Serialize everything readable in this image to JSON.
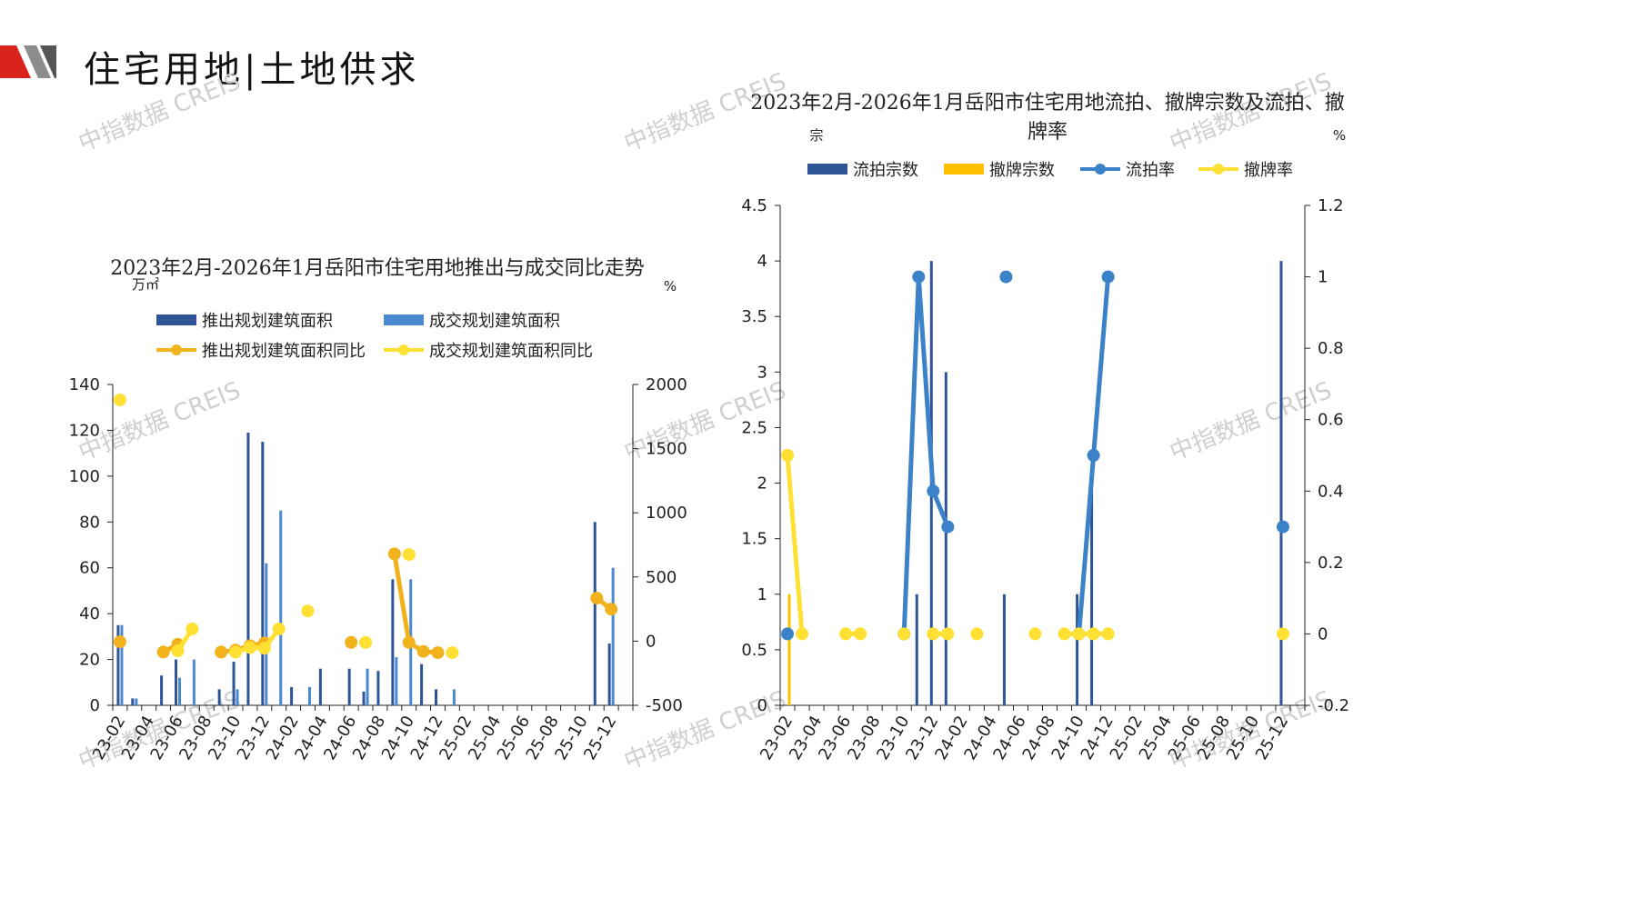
{
  "page": {
    "title": "住宅用地|土地供求",
    "watermark": "中指数据 CREIS"
  },
  "categories": [
    "23-02",
    "23-03",
    "23-04",
    "23-05",
    "23-06",
    "23-07",
    "23-08",
    "23-09",
    "23-10",
    "23-11",
    "23-12",
    "24-01",
    "24-02",
    "24-03",
    "24-04",
    "24-05",
    "24-06",
    "24-07",
    "24-08",
    "24-09",
    "24-10",
    "24-11",
    "24-12",
    "25-01",
    "25-02",
    "25-03",
    "25-04",
    "25-05",
    "25-06",
    "25-07",
    "25-08",
    "25-09",
    "25-10",
    "25-11",
    "25-12",
    "26-01"
  ],
  "tick_labels": [
    "23-02",
    "23-04",
    "23-06",
    "23-08",
    "23-10",
    "23-12",
    "24-02",
    "24-04",
    "24-06",
    "24-08",
    "24-10",
    "24-12",
    "25-02",
    "25-04",
    "25-06",
    "25-08",
    "25-10",
    "25-12"
  ],
  "chart_data": [
    {
      "type": "bar",
      "title": "2023年2月-2026年1月岳阳市住宅用地推出与成交同比走势",
      "ylabel": "万㎡",
      "y2label": "%",
      "ylim": [
        0,
        140
      ],
      "y2lim": [
        -500,
        2000
      ],
      "yticks": [
        "0",
        "20",
        "40",
        "60",
        "80",
        "100",
        "120",
        "140"
      ],
      "y2ticks": [
        "-500",
        "0",
        "500",
        "1000",
        "1500",
        "2000"
      ],
      "legend_position": "top",
      "series": [
        {
          "name": "推出规划建筑面积",
          "kind": "bar",
          "axis": "left",
          "color": "#2f5597",
          "values": [
            35,
            3,
            0,
            13,
            20,
            0,
            0,
            7,
            19,
            119,
            115,
            0,
            8,
            0,
            16,
            0,
            16,
            6,
            15,
            55,
            0,
            18,
            7,
            0,
            0,
            0,
            0,
            0,
            0,
            0,
            0,
            0,
            0,
            80,
            27,
            0
          ]
        },
        {
          "name": "成交规划建筑面积",
          "kind": "bar",
          "axis": "left",
          "color": "#4a8ad0",
          "values": [
            35,
            3,
            0,
            0,
            12,
            20,
            0,
            0,
            7,
            0,
            62,
            85,
            0,
            8,
            0,
            0,
            0,
            16,
            0,
            21,
            55,
            0,
            0,
            7,
            0,
            0,
            0,
            0,
            0,
            0,
            0,
            0,
            0,
            0,
            60,
            0
          ]
        },
        {
          "name": "推出规划建筑面积同比",
          "kind": "line",
          "axis": "right",
          "color": "#f2b21b",
          "values": [
            -5,
            null,
            null,
            -85,
            -25,
            null,
            null,
            -85,
            -70,
            -35,
            -15,
            null,
            null,
            null,
            null,
            null,
            -10,
            null,
            null,
            680,
            -10,
            -80,
            -90,
            null,
            null,
            null,
            null,
            null,
            null,
            null,
            null,
            null,
            null,
            335,
            250,
            null
          ]
        },
        {
          "name": "成交规划建筑面积同比",
          "kind": "line",
          "axis": "right",
          "color": "#ffe033",
          "values": [
            1880,
            null,
            null,
            null,
            -75,
            95,
            null,
            null,
            -85,
            -50,
            -55,
            95,
            null,
            235,
            null,
            null,
            null,
            -10,
            null,
            null,
            675,
            null,
            null,
            -90,
            null,
            null,
            null,
            null,
            null,
            null,
            null,
            null,
            null,
            null,
            null,
            null
          ]
        }
      ]
    },
    {
      "type": "bar",
      "title": "2023年2月-2026年1月岳阳市住宅用地流拍、撤牌宗数及流拍、撤牌率",
      "ylabel": "宗",
      "y2label": "%",
      "ylim": [
        0,
        4.5
      ],
      "y2lim": [
        -0.2,
        1.2
      ],
      "yticks": [
        "0",
        "0.5",
        "1",
        "1.5",
        "2",
        "2.5",
        "3",
        "3.5",
        "4",
        "4.5"
      ],
      "y2ticks": [
        "-0.2",
        "0",
        "0.2",
        "0.4",
        "0.6",
        "0.8",
        "1",
        "1.2"
      ],
      "legend_position": "top",
      "series": [
        {
          "name": "流拍宗数",
          "kind": "bar",
          "axis": "left",
          "color": "#2f5597",
          "values": [
            0,
            0,
            0,
            0,
            0,
            0,
            0,
            0,
            0,
            1,
            4,
            3,
            0,
            0,
            0,
            1,
            0,
            0,
            0,
            0,
            1,
            2,
            0,
            0,
            0,
            0,
            0,
            0,
            0,
            0,
            0,
            0,
            0,
            0,
            4,
            0
          ]
        },
        {
          "name": "撤牌宗数",
          "kind": "bar",
          "axis": "left",
          "color": "#ffc000",
          "values": [
            1,
            0,
            0,
            0,
            0,
            0,
            0,
            0,
            0,
            0,
            0,
            0,
            0,
            0,
            0,
            0,
            0,
            0,
            0,
            0,
            0,
            0,
            0,
            0,
            0,
            0,
            0,
            0,
            0,
            0,
            0,
            0,
            0,
            0,
            0,
            0
          ]
        },
        {
          "name": "流拍率",
          "kind": "line",
          "axis": "right",
          "color": "#3b82c9",
          "values": [
            0,
            null,
            null,
            null,
            null,
            null,
            null,
            null,
            0,
            1,
            0.4,
            0.3,
            null,
            null,
            null,
            1,
            null,
            null,
            null,
            null,
            0,
            0.5,
            1,
            null,
            null,
            null,
            null,
            null,
            null,
            null,
            null,
            null,
            null,
            null,
            0.3,
            null
          ]
        },
        {
          "name": "撤牌率",
          "kind": "line",
          "axis": "right",
          "color": "#ffe033",
          "values": [
            0.5,
            0,
            null,
            null,
            0,
            0,
            null,
            null,
            0,
            null,
            0,
            0,
            null,
            0,
            null,
            null,
            null,
            0,
            null,
            0,
            0,
            0,
            0,
            null,
            null,
            null,
            null,
            null,
            null,
            null,
            null,
            null,
            null,
            null,
            0,
            null
          ]
        }
      ]
    }
  ]
}
